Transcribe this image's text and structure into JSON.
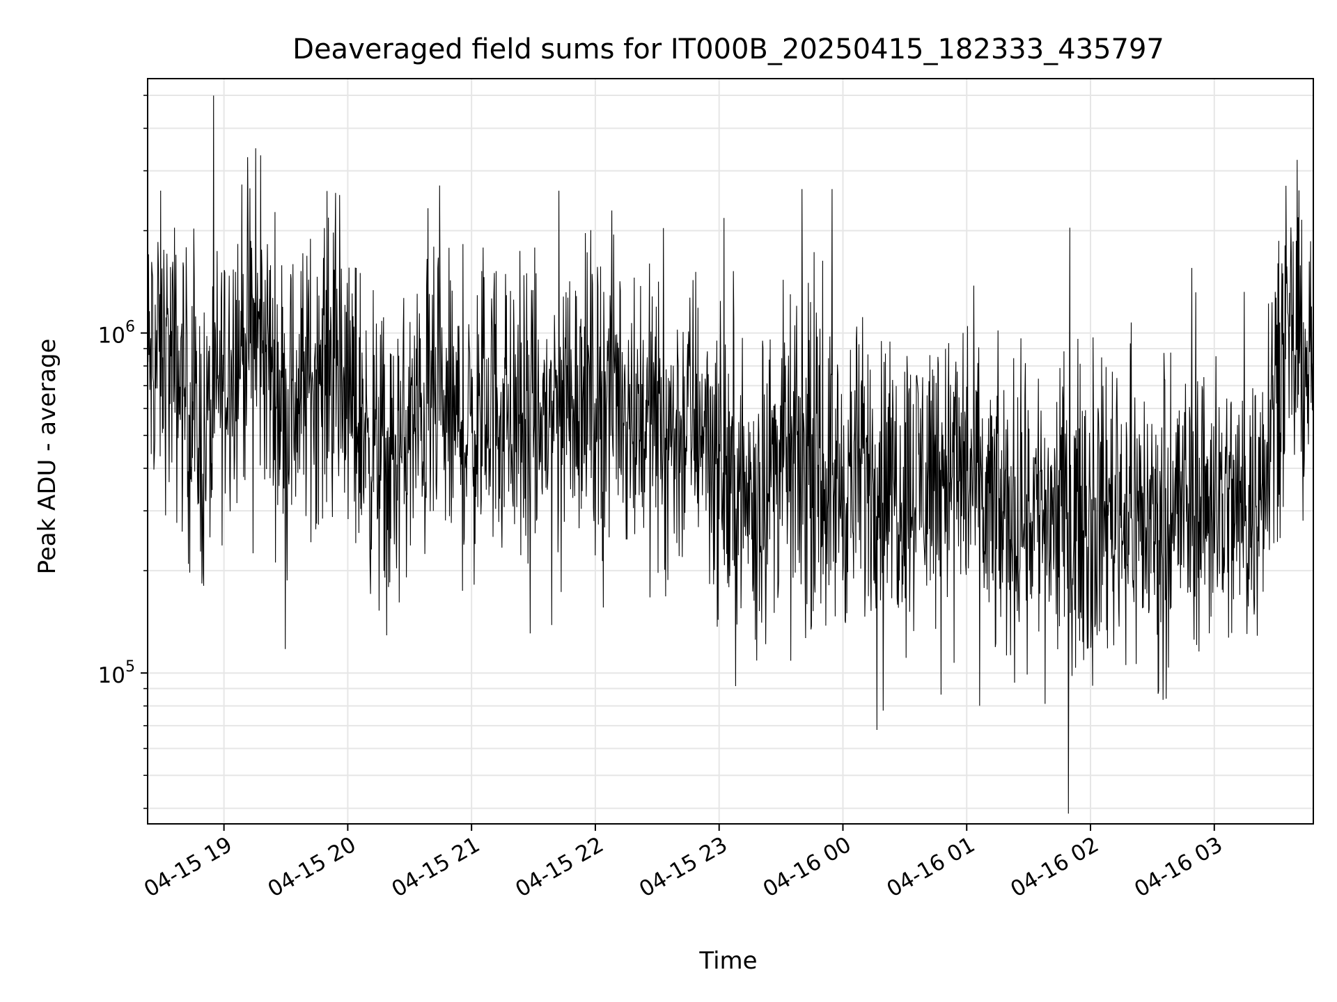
{
  "chart_data": {
    "type": "line",
    "title": "Deaveraged field sums for IT000B_20250415_182333_435797",
    "xlabel": "Time",
    "ylabel": "Peak ADU - average",
    "y_scale": "log",
    "ylim": [
      36000,
      5600000
    ],
    "xlim": [
      "2025-04-15 18:23",
      "2025-04-16 03:48"
    ],
    "x_ticks": [
      {
        "value": "2025-04-15 19:00",
        "label": "04-15 19"
      },
      {
        "value": "2025-04-15 20:00",
        "label": "04-15 20"
      },
      {
        "value": "2025-04-15 21:00",
        "label": "04-15 21"
      },
      {
        "value": "2025-04-15 22:00",
        "label": "04-15 22"
      },
      {
        "value": "2025-04-15 23:00",
        "label": "04-15 23"
      },
      {
        "value": "2025-04-16 00:00",
        "label": "04-16 00"
      },
      {
        "value": "2025-04-16 01:00",
        "label": "04-16 01"
      },
      {
        "value": "2025-04-16 02:00",
        "label": "04-16 02"
      },
      {
        "value": "2025-04-16 03:00",
        "label": "04-16 03"
      }
    ],
    "y_ticks": [
      {
        "value": 100000,
        "base": "10",
        "exp": "5"
      },
      {
        "value": 1000000,
        "base": "10",
        "exp": "6"
      }
    ],
    "grid": true,
    "line_color": "#000000",
    "grid_color": "#e6e6e6",
    "series": [
      {
        "x": [
          "2025-04-15 18:23",
          "2025-04-15 18:30",
          "2025-04-15 18:40",
          "2025-04-15 18:50",
          "2025-04-15 19:00",
          "2025-04-15 19:10",
          "2025-04-15 19:20",
          "2025-04-15 19:30",
          "2025-04-15 19:40",
          "2025-04-15 19:50",
          "2025-04-15 20:00",
          "2025-04-15 20:10",
          "2025-04-15 20:20",
          "2025-04-15 20:30",
          "2025-04-15 20:40",
          "2025-04-15 20:50",
          "2025-04-15 21:00",
          "2025-04-15 21:10",
          "2025-04-15 21:20",
          "2025-04-15 21:30",
          "2025-04-15 21:40",
          "2025-04-15 21:50",
          "2025-04-15 22:00",
          "2025-04-15 22:10",
          "2025-04-15 22:20",
          "2025-04-15 22:30",
          "2025-04-15 22:40",
          "2025-04-15 22:50",
          "2025-04-15 23:00",
          "2025-04-15 23:10",
          "2025-04-15 23:20",
          "2025-04-15 23:30",
          "2025-04-15 23:40",
          "2025-04-15 23:50",
          "2025-04-16 00:00",
          "2025-04-16 00:10",
          "2025-04-16 00:20",
          "2025-04-16 00:30",
          "2025-04-16 00:40",
          "2025-04-16 00:50",
          "2025-04-16 01:00",
          "2025-04-16 01:10",
          "2025-04-16 01:20",
          "2025-04-16 01:30",
          "2025-04-16 01:40",
          "2025-04-16 01:50",
          "2025-04-16 02:00",
          "2025-04-16 02:10",
          "2025-04-16 02:20",
          "2025-04-16 02:30",
          "2025-04-16 02:40",
          "2025-04-16 02:50",
          "2025-04-16 03:00",
          "2025-04-16 03:10",
          "2025-04-16 03:20",
          "2025-04-16 03:30",
          "2025-04-16 03:40",
          "2025-04-16 03:48"
        ],
        "y": [
          800000,
          900000,
          700000,
          450000,
          800000,
          1000000,
          900000,
          600000,
          700000,
          850000,
          650000,
          500000,
          380000,
          500000,
          600000,
          550000,
          500000,
          650000,
          550000,
          500000,
          600000,
          700000,
          650000,
          700000,
          600000,
          550000,
          500000,
          600000,
          400000,
          320000,
          350000,
          450000,
          400000,
          380000,
          350000,
          400000,
          380000,
          350000,
          400000,
          420000,
          380000,
          300000,
          280000,
          320000,
          300000,
          300000,
          280000,
          320000,
          300000,
          280000,
          300000,
          320000,
          330000,
          300000,
          310000,
          800000,
          900000,
          800000
        ]
      }
    ]
  }
}
